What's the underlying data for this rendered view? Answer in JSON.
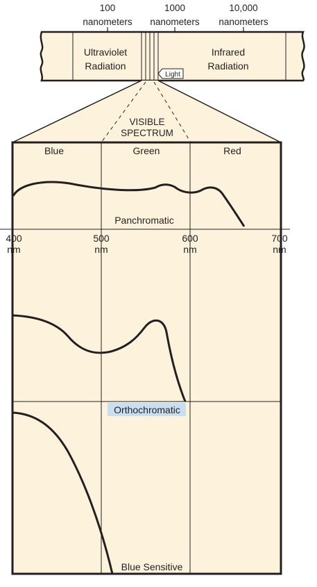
{
  "scale": {
    "ticks": [
      {
        "value": "100",
        "unit": "nanometers"
      },
      {
        "value": "1000",
        "unit": "nanometers"
      },
      {
        "value": "10,000",
        "unit": "nanometers"
      }
    ],
    "bands": {
      "ultraviolet": [
        "Ultraviolet",
        "Radiation"
      ],
      "infrared": [
        "Infrared",
        "Radiation"
      ],
      "light": "Light"
    }
  },
  "visible_label": [
    "VISIBLE",
    "SPECTRUM"
  ],
  "color_headers": [
    "Blue",
    "Green",
    "Red"
  ],
  "wavelength_axis": [
    {
      "value": "400",
      "unit": "nm"
    },
    {
      "value": "500",
      "unit": "nm"
    },
    {
      "value": "600",
      "unit": "nm"
    },
    {
      "value": "700",
      "unit": "nm"
    }
  ],
  "panels": {
    "panchromatic": "Panchromatic",
    "orthochromatic": "Orthochromatic",
    "blue_sensitive": "Blue Sensitive"
  },
  "colors": {
    "fill": "#fdf3dc",
    "ink": "#231f20",
    "highlight": "#c9dff0"
  }
}
